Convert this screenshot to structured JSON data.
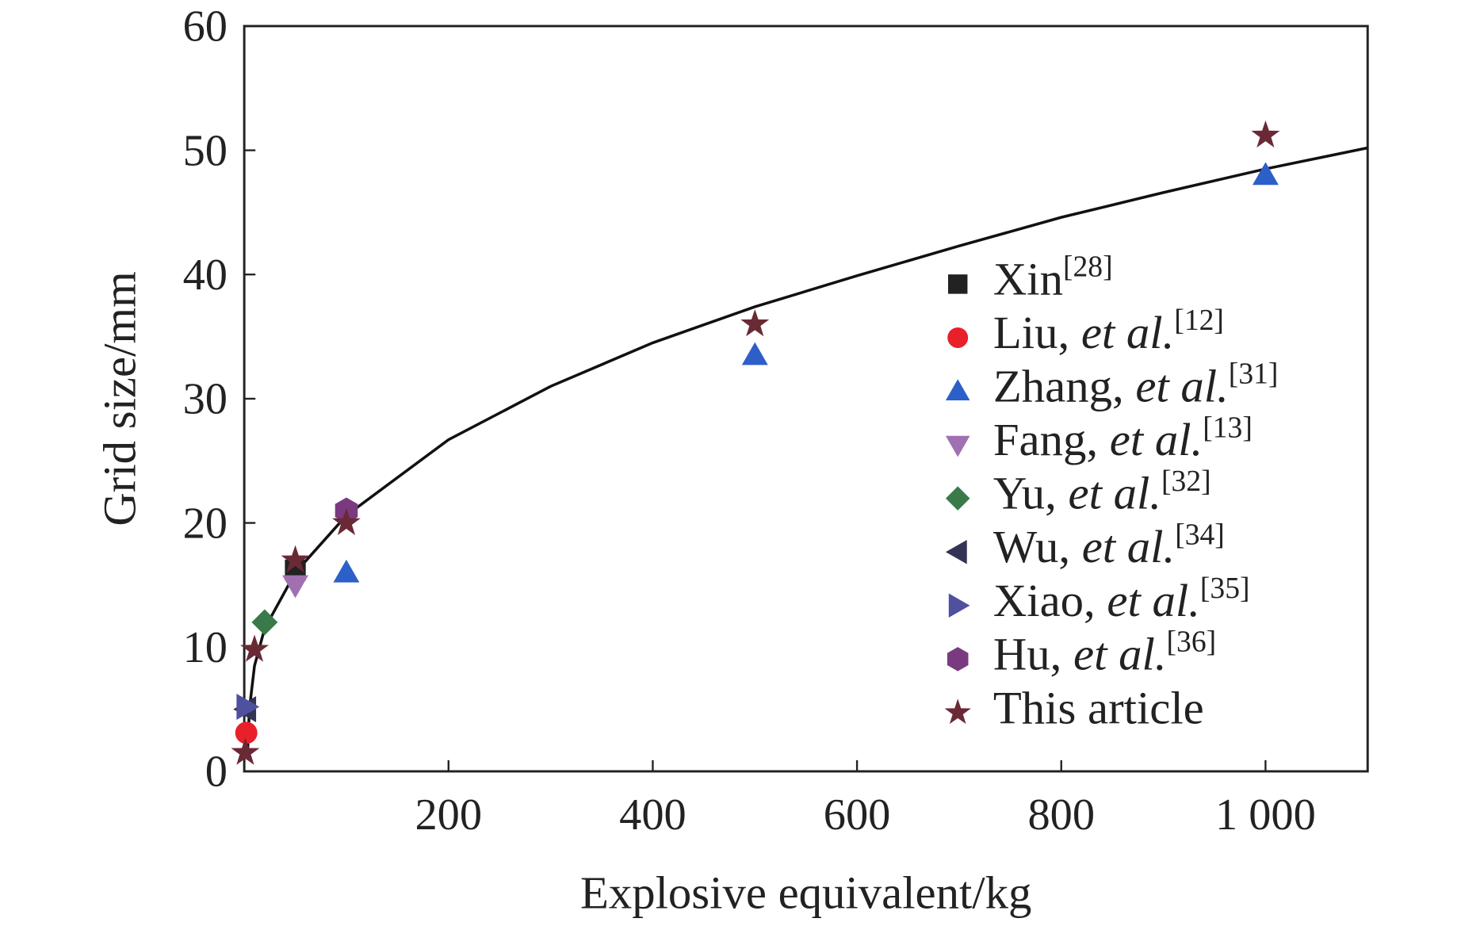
{
  "chart_data": {
    "type": "scatter",
    "xlabel": "Explosive equivalent/kg",
    "ylabel": "Grid size/mm",
    "xlim": [
      0,
      1100
    ],
    "xticks": [
      200,
      400,
      600,
      800,
      {
        "value": 1000,
        "label": "1 000"
      }
    ],
    "ylim": [
      0,
      60
    ],
    "yticks": [
      0,
      10,
      20,
      30,
      40,
      50,
      60
    ],
    "series": [
      {
        "name": "Xin[28]",
        "marker": "square",
        "color": "#222222",
        "x": [
          50
        ],
        "y": [
          16.2
        ]
      },
      {
        "name": "Liu, et al.[12]",
        "marker": "circle",
        "color": "#e8202a",
        "x": [
          2
        ],
        "y": [
          3.1
        ]
      },
      {
        "name": "Zhang, et al.[31]",
        "marker": "triangle-up",
        "color": "#2d5fc9",
        "x": [
          100,
          500,
          1000
        ],
        "y": [
          16,
          33.5,
          48
        ]
      },
      {
        "name": "Fang, et al.[13]",
        "marker": "triangle-down",
        "color": "#a070b0",
        "x": [
          50
        ],
        "y": [
          15
        ]
      },
      {
        "name": "Yu, et al.[32]",
        "marker": "diamond",
        "color": "#3a7a4a",
        "x": [
          20
        ],
        "y": [
          12
        ]
      },
      {
        "name": "Wu, et al.[34]",
        "marker": "triangle-left",
        "color": "#333355",
        "x": [
          2
        ],
        "y": [
          5
        ]
      },
      {
        "name": "Xiao, et al.[35]",
        "marker": "triangle-right",
        "color": "#5050a0",
        "x": [
          2
        ],
        "y": [
          5.2
        ]
      },
      {
        "name": "Hu, et al.[36]",
        "marker": "hexagon",
        "color": "#7a3a80",
        "x": [
          100
        ],
        "y": [
          21
        ]
      },
      {
        "name": "This article",
        "marker": "star",
        "color": "#6a2a35",
        "x": [
          1,
          10,
          50,
          100,
          500,
          1000
        ],
        "y": [
          1.5,
          9.8,
          17,
          20,
          36,
          51.2
        ]
      }
    ],
    "fit_curve": {
      "color": "#111111",
      "x": [
        3,
        5,
        10,
        20,
        50,
        100,
        200,
        300,
        400,
        500,
        600,
        700,
        800,
        900,
        1000,
        1100
      ],
      "y": [
        1,
        5,
        8.5,
        11.5,
        16,
        20.6,
        26.7,
        31,
        34.5,
        37.4,
        39.9,
        42.3,
        44.6,
        46.6,
        48.5,
        50.2
      ]
    }
  }
}
